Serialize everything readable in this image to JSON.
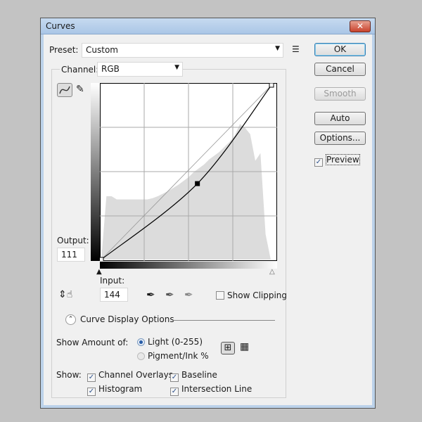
{
  "window": {
    "title": "Curves",
    "close": "✕"
  },
  "preset": {
    "label": "Preset:",
    "value": "Custom"
  },
  "channel": {
    "label": "Channel:",
    "value": "RGB"
  },
  "buttons": {
    "ok": "OK",
    "cancel": "Cancel",
    "smooth": "Smooth",
    "auto": "Auto",
    "options": "Options...",
    "preview": "Preview"
  },
  "preview_checked": true,
  "curve": {
    "points": [
      [
        0,
        0
      ],
      [
        144,
        111
      ],
      [
        255,
        255
      ]
    ],
    "selected_point": 1
  },
  "output": {
    "label": "Output:",
    "value": "111"
  },
  "input": {
    "label": "Input:",
    "value": "144"
  },
  "show_clipping": {
    "label": "Show Clipping",
    "checked": false
  },
  "display_options": {
    "title": "Curve Display Options",
    "show_amount_label": "Show Amount of:",
    "light": "Light  (0-255)",
    "pigment": "Pigment/Ink %",
    "show_label": "Show:",
    "channel_overlays": "Channel Overlays",
    "baseline": "Baseline",
    "histogram": "Histogram",
    "intersection_line": "Intersection Line"
  }
}
